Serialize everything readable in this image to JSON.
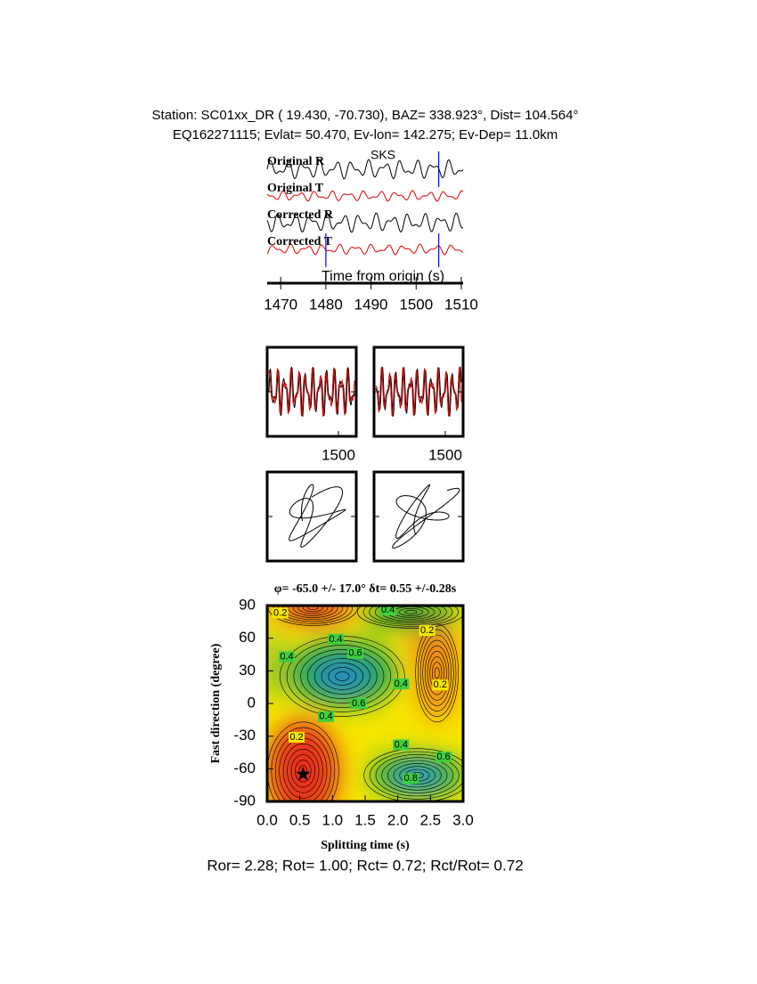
{
  "header": {
    "line1": "Station: SC01xx_DR (  19.430,  -70.730), BAZ=  338.923°, Dist=  104.564°",
    "line2": "EQ162271115; Evlat=  50.470, Ev-lon= 142.275; Ev-Dep= 11.0km"
  },
  "chart_data": [
    {
      "type": "seismogram",
      "phase": "SKS",
      "phase_color": "#e00000",
      "xlabel": "Time from origin (s)",
      "traces": [
        {
          "name": "Original R",
          "color": "#000000"
        },
        {
          "name": "Original T",
          "color": "#e00000"
        },
        {
          "name": "Corrected R",
          "color": "#000000"
        },
        {
          "name": "Corrected T",
          "color": "#e00000"
        }
      ],
      "xlim": [
        1467,
        1510.4
      ],
      "xticks": [
        1470,
        1480,
        1490,
        1500,
        1510
      ],
      "markers": [
        1480,
        1505
      ],
      "marker_color": "#0000ff"
    },
    {
      "type": "waveform-window",
      "xlim": [
        1480,
        1505
      ],
      "xticks": [
        1500
      ],
      "colors": [
        "#000000",
        "#e00000"
      ]
    },
    {
      "type": "particle-motion"
    },
    {
      "type": "contour",
      "title": "φ= -65.0 +/- 17.0° δt= 0.55 +/-0.28s",
      "xlabel": "Splitting time (s)",
      "ylabel": "Fast direction (degree)",
      "xlim": [
        0,
        3
      ],
      "ylim": [
        -90,
        90
      ],
      "xticks": [
        {
          "value": 0,
          "label": "0.0"
        },
        {
          "value": 0.5,
          "label": "0.5"
        },
        {
          "value": 1,
          "label": "1.0"
        },
        {
          "value": 1.5,
          "label": "1.5"
        },
        {
          "value": 2,
          "label": "2.0"
        },
        {
          "value": 2.5,
          "label": "2.5"
        },
        {
          "value": 3,
          "label": "3.0"
        }
      ],
      "yticks": [
        90,
        60,
        30,
        0,
        -30,
        -60,
        -90
      ],
      "best": {
        "x": 0.55,
        "y": -65
      },
      "contour_labels": [
        {
          "x": 0.2,
          "y": 83,
          "value": 0.2
        },
        {
          "x": 1.85,
          "y": 86,
          "value": 0.4
        },
        {
          "x": 1.05,
          "y": 59,
          "value": 0.4
        },
        {
          "x": 1.35,
          "y": 46,
          "value": 0.6
        },
        {
          "x": 0.3,
          "y": 43,
          "value": 0.4
        },
        {
          "x": 2.45,
          "y": 67,
          "value": 0.2
        },
        {
          "x": 2.65,
          "y": 17,
          "value": 0.2
        },
        {
          "x": 2.05,
          "y": 18,
          "value": 0.4
        },
        {
          "x": 1.4,
          "y": 0,
          "value": 0.6
        },
        {
          "x": 0.9,
          "y": -12,
          "value": 0.4
        },
        {
          "x": 0.45,
          "y": -31,
          "value": 0.2
        },
        {
          "x": 2.05,
          "y": -38,
          "value": 0.4
        },
        {
          "x": 2.7,
          "y": -49,
          "value": 0.6
        },
        {
          "x": 2.2,
          "y": -69,
          "value": 0.8
        }
      ]
    }
  ],
  "footer": "Ror= 2.28; Rot= 1.00; Rct= 0.72; Rct/Rot= 0.72"
}
